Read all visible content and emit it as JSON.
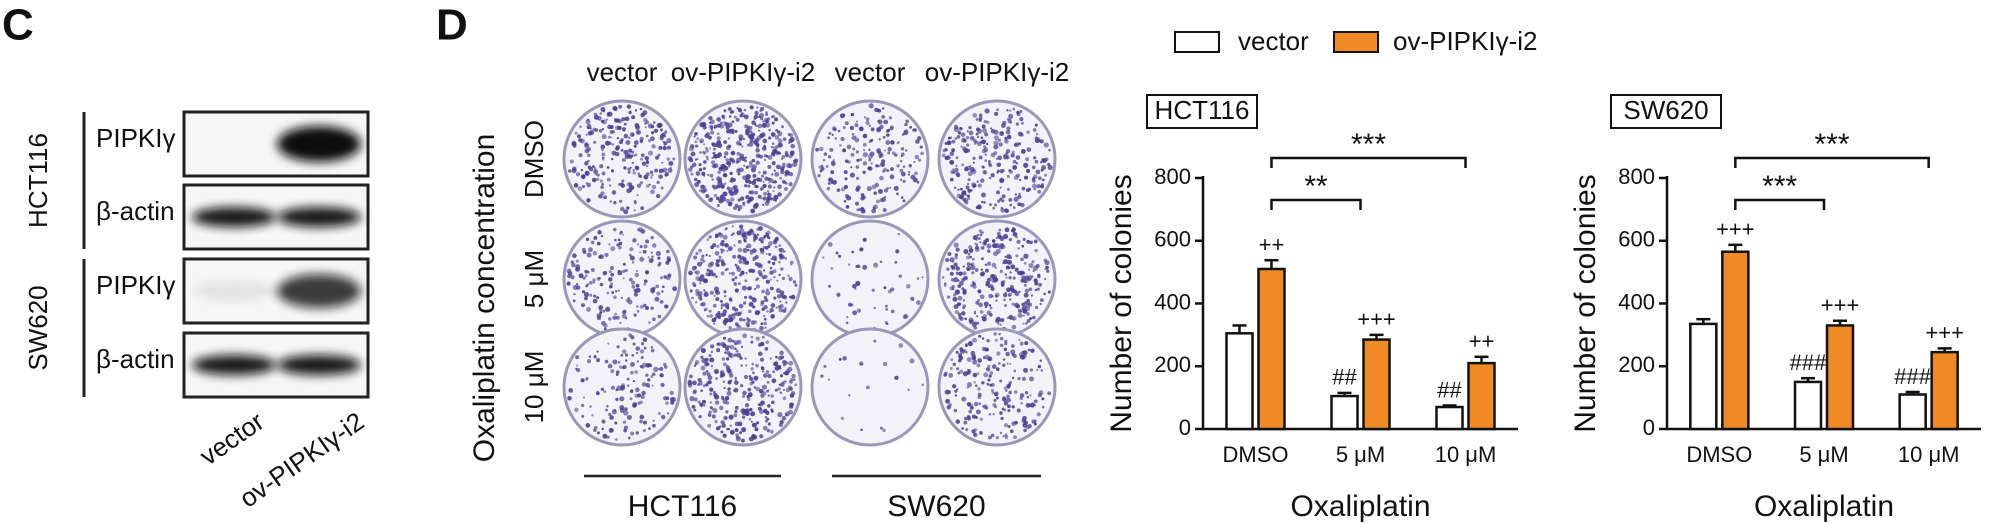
{
  "panel_c": {
    "label": "C",
    "cell_lines": [
      "HCT116",
      "SW620"
    ],
    "proteins": [
      "PIPKIγ",
      "β-actin"
    ],
    "lanes": [
      "vector",
      "ov-PIPKIγ-i2"
    ]
  },
  "panel_d": {
    "label": "D",
    "column_headers": [
      "vector",
      "ov-PIPKIγ-i2",
      "vector",
      "ov-PIPKIγ-i2"
    ],
    "row_axis_label": "Oxaliplatin concentration",
    "rows": [
      "DMSO",
      "5 μM",
      "10 μM"
    ],
    "cell_lines": [
      "HCT116",
      "SW620"
    ]
  },
  "chart_data": [
    {
      "type": "bar",
      "title": "HCT116",
      "ylabel": "Number of colonies",
      "xlabel": "Oxaliplatin",
      "categories": [
        "DMSO",
        "5 μM",
        "10 μM"
      ],
      "series": [
        {
          "name": "vector",
          "color": "#ffffff",
          "values": [
            305,
            105,
            70
          ],
          "errors": [
            25,
            10,
            5
          ],
          "annotations": [
            null,
            "##",
            "##"
          ]
        },
        {
          "name": "ov-PIPKIγ-i2",
          "color": "#f08a24",
          "values": [
            510,
            285,
            210
          ],
          "errors": [
            28,
            15,
            20
          ],
          "annotations": [
            "++",
            "+++",
            "++"
          ]
        }
      ],
      "brackets": [
        "**",
        "***"
      ],
      "ylim": [
        0,
        800
      ],
      "yticks": [
        0,
        200,
        400,
        600,
        800
      ]
    },
    {
      "type": "bar",
      "title": "SW620",
      "ylabel": "Number of colonies",
      "xlabel": "Oxaliplatin",
      "categories": [
        "DMSO",
        "5 μM",
        "10 μM"
      ],
      "series": [
        {
          "name": "vector",
          "color": "#ffffff",
          "values": [
            335,
            150,
            110
          ],
          "errors": [
            15,
            12,
            8
          ],
          "annotations": [
            null,
            "###",
            "###"
          ]
        },
        {
          "name": "ov-PIPKIγ-i2",
          "color": "#f08a24",
          "values": [
            565,
            330,
            245
          ],
          "errors": [
            22,
            15,
            12
          ],
          "annotations": [
            "+++",
            "+++",
            "+++"
          ]
        }
      ],
      "brackets": [
        "***",
        "***"
      ],
      "ylim": [
        0,
        800
      ],
      "yticks": [
        0,
        200,
        400,
        600,
        800
      ]
    }
  ]
}
